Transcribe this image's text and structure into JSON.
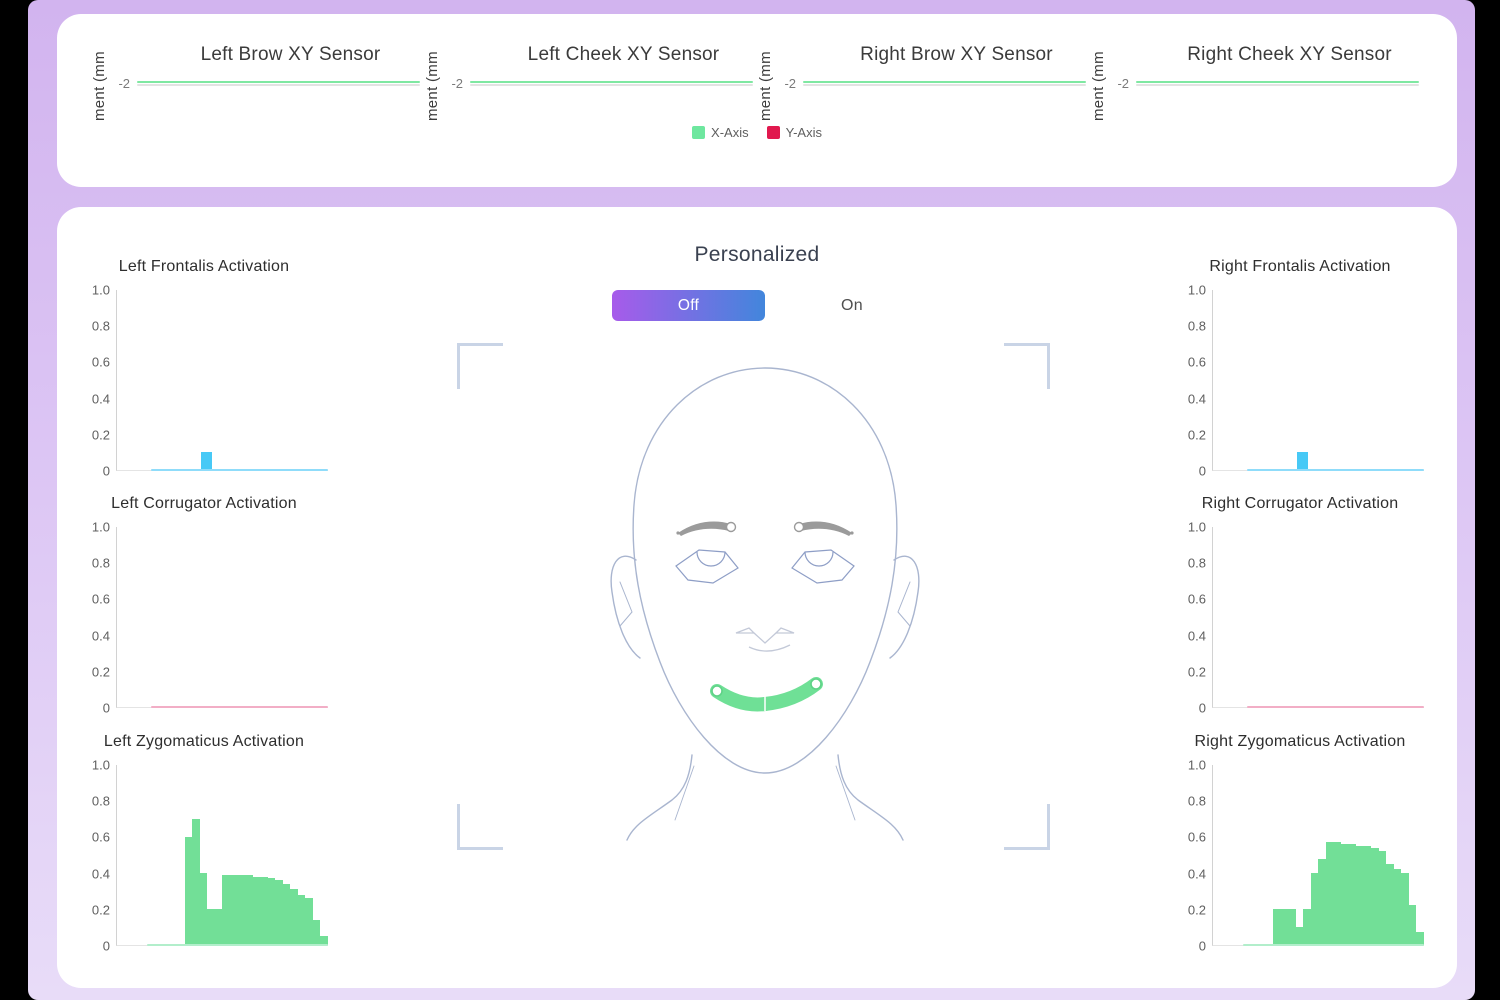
{
  "top_panel": {
    "ylabel": "ment (mm",
    "ytick": "-2",
    "line_color": "#7fe8a2",
    "charts": [
      {
        "title": "Left Brow XY Sensor"
      },
      {
        "title": "Left Cheek XY Sensor"
      },
      {
        "title": "Right Brow XY Sensor"
      },
      {
        "title": "Right Cheek XY Sensor"
      }
    ],
    "legend": [
      {
        "label": "X-Axis",
        "color": "#6ee79f"
      },
      {
        "label": "Y-Axis",
        "color": "#e1184e"
      }
    ]
  },
  "main_panel": {
    "title": "Personalized",
    "toggle": {
      "off_label": "Off",
      "on_label": "On",
      "active": "Off",
      "off_gradient": [
        "#a75bea",
        "#4286dc"
      ]
    },
    "face": {
      "highlighted_feature": "smile (zygomaticus region)",
      "highlight_color": "#6fe096"
    }
  },
  "chart_data": [
    {
      "type": "line",
      "title": "Left Brow XY Sensor",
      "ylabel": "ment (mm",
      "yticks": [
        "-2"
      ],
      "series": [
        {
          "name": "X-Axis",
          "color": "#6ee79f",
          "values": [
            -1.95,
            -1.95,
            -1.95,
            -1.95,
            -1.95,
            -1.95
          ]
        },
        {
          "name": "Y-Axis",
          "color": "#e1184e",
          "values": []
        }
      ]
    },
    {
      "type": "line",
      "title": "Left Cheek XY Sensor",
      "ylabel": "ment (mm",
      "yticks": [
        "-2"
      ],
      "series": [
        {
          "name": "X-Axis",
          "color": "#6ee79f",
          "values": [
            -1.95,
            -1.95,
            -1.95,
            -1.95,
            -1.95,
            -1.95
          ]
        },
        {
          "name": "Y-Axis",
          "color": "#e1184e",
          "values": []
        }
      ]
    },
    {
      "type": "line",
      "title": "Right Brow XY Sensor",
      "ylabel": "ment (mm",
      "yticks": [
        "-2"
      ],
      "series": [
        {
          "name": "X-Axis",
          "color": "#6ee79f",
          "values": [
            -1.95,
            -1.95,
            -1.95,
            -1.95,
            -1.95,
            -1.95
          ]
        },
        {
          "name": "Y-Axis",
          "color": "#e1184e",
          "values": []
        }
      ]
    },
    {
      "type": "line",
      "title": "Right Cheek XY Sensor",
      "ylabel": "ment (mm",
      "yticks": [
        "-2"
      ],
      "series": [
        {
          "name": "X-Axis",
          "color": "#6ee79f",
          "values": [
            -1.95,
            -1.95,
            -1.95,
            -1.95,
            -1.95,
            -1.95
          ]
        },
        {
          "name": "Y-Axis",
          "color": "#e1184e",
          "values": []
        }
      ]
    },
    {
      "type": "bar",
      "title": "Left Frontalis Activation",
      "color": "#47c9f6",
      "baseline_color": "#8fdcfa",
      "baseline_start_pct": 16,
      "ylim": [
        0,
        1
      ],
      "yticks": [
        "1.0",
        "0.8",
        "0.6",
        "0.4",
        "0.2",
        "0"
      ],
      "values": [
        0,
        0,
        0,
        0,
        0,
        0,
        0,
        0,
        0.1,
        0,
        0,
        0,
        0,
        0,
        0,
        0,
        0,
        0,
        0,
        0
      ]
    },
    {
      "type": "bar",
      "title": "Left Corrugator Activation",
      "color": "#f2aec6",
      "baseline_color": "#f2aec6",
      "baseline_start_pct": 16,
      "ylim": [
        0,
        1
      ],
      "yticks": [
        "1.0",
        "0.8",
        "0.6",
        "0.4",
        "0.2",
        "0"
      ],
      "values": [
        0,
        0,
        0,
        0,
        0,
        0,
        0,
        0,
        0,
        0,
        0,
        0,
        0,
        0,
        0,
        0,
        0,
        0,
        0,
        0
      ]
    },
    {
      "type": "bar",
      "title": "Left Zygomaticus Activation",
      "color": "#72df97",
      "baseline_color": "#b2eecb",
      "baseline_start_pct": 14,
      "ylim": [
        0,
        1
      ],
      "yticks": [
        "1.0",
        "0.8",
        "0.6",
        "0.4",
        "0.2",
        "0"
      ],
      "values": [
        0,
        0,
        0,
        0,
        0,
        0,
        0,
        0,
        0,
        0.6,
        0.7,
        0.4,
        0.2,
        0.2,
        0.39,
        0.39,
        0.39,
        0.39,
        0.38,
        0.38,
        0.37,
        0.36,
        0.34,
        0.31,
        0.28,
        0.26,
        0.14,
        0.05
      ]
    },
    {
      "type": "bar",
      "title": "Right Frontalis Activation",
      "color": "#47c9f6",
      "baseline_color": "#8fdcfa",
      "baseline_start_pct": 16,
      "ylim": [
        0,
        1
      ],
      "yticks": [
        "1.0",
        "0.8",
        "0.6",
        "0.4",
        "0.2",
        "0"
      ],
      "values": [
        0,
        0,
        0,
        0,
        0,
        0,
        0,
        0,
        0.1,
        0,
        0,
        0,
        0,
        0,
        0,
        0,
        0,
        0,
        0,
        0
      ]
    },
    {
      "type": "bar",
      "title": "Right Corrugator Activation",
      "color": "#f2aec6",
      "baseline_color": "#f2aec6",
      "baseline_start_pct": 16,
      "ylim": [
        0,
        1
      ],
      "yticks": [
        "1.0",
        "0.8",
        "0.6",
        "0.4",
        "0.2",
        "0"
      ],
      "values": [
        0,
        0,
        0,
        0,
        0,
        0,
        0,
        0,
        0,
        0,
        0,
        0,
        0,
        0,
        0,
        0,
        0,
        0,
        0,
        0
      ]
    },
    {
      "type": "bar",
      "title": "Right Zygomaticus Activation",
      "color": "#72df97",
      "baseline_color": "#b2eecb",
      "baseline_start_pct": 14,
      "ylim": [
        0,
        1
      ],
      "yticks": [
        "1.0",
        "0.8",
        "0.6",
        "0.4",
        "0.2",
        "0"
      ],
      "values": [
        0,
        0,
        0,
        0,
        0,
        0,
        0,
        0,
        0.2,
        0.2,
        0.2,
        0.1,
        0.2,
        0.4,
        0.48,
        0.57,
        0.57,
        0.56,
        0.56,
        0.55,
        0.55,
        0.54,
        0.52,
        0.45,
        0.42,
        0.4,
        0.22,
        0.07
      ]
    }
  ]
}
